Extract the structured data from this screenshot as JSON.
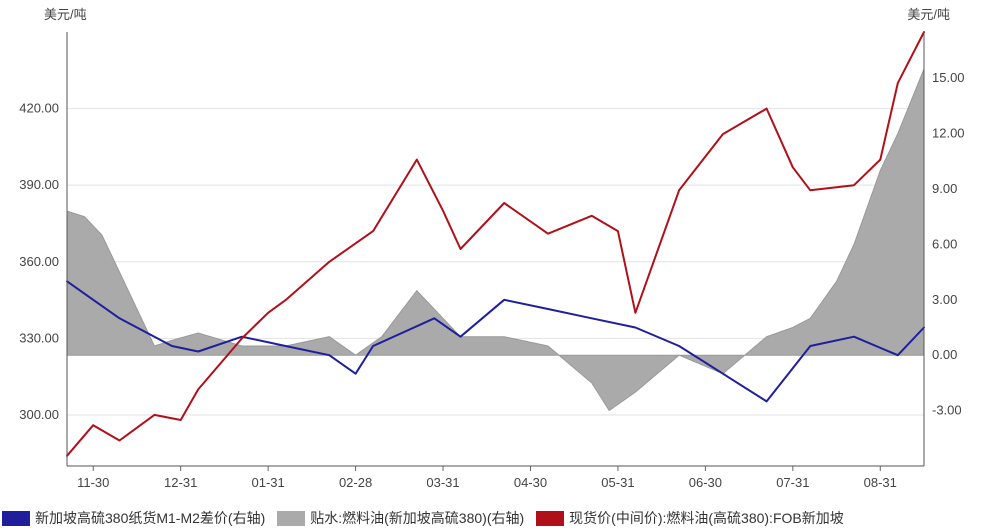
{
  "chart_data": {
    "type": "line",
    "left_unit": "美元/吨",
    "right_unit": "美元/吨",
    "ylim_left": [
      280,
      450
    ],
    "ylim_right": [
      -6,
      17.5
    ],
    "yticks_left": [
      "300.00",
      "330.00",
      "360.00",
      "390.00",
      "420.00"
    ],
    "yticks_right": [
      "-3.00",
      "0.00",
      "3.00",
      "6.00",
      "9.00",
      "12.00",
      "15.00"
    ],
    "xticks": [
      "11-30",
      "12-31",
      "01-31",
      "02-28",
      "03-31",
      "04-30",
      "05-31",
      "06-30",
      "07-31",
      "08-31"
    ],
    "legend_position": "bottom",
    "grid": "horizontal",
    "series": [
      {
        "name": "新加坡高硫380纸货M1-M2差价(右轴)",
        "kind": "line",
        "axis": "right",
        "color": "#1f1f9e",
        "x": [
          0,
          0.3,
          0.6,
          1.2,
          1.5,
          2.0,
          2.5,
          3.0,
          3.3,
          3.5,
          4.2,
          4.5,
          5.0,
          5.5,
          6.0,
          6.5,
          7.0,
          7.5,
          8.0,
          8.5,
          9.0,
          9.5,
          9.8
        ],
        "y": [
          4.0,
          3.0,
          2.0,
          0.5,
          0.2,
          1.0,
          0.5,
          0.0,
          -1.0,
          0.5,
          2.0,
          1.0,
          3.0,
          2.5,
          2.0,
          1.5,
          0.5,
          -1.0,
          -2.5,
          0.5,
          1.0,
          0.0,
          1.5
        ],
        "x2": [],
        "y2": []
      },
      {
        "name": "贴水:燃料油(新加坡高硫380)(右轴)",
        "kind": "area",
        "axis": "right",
        "color": "#aaaaaa",
        "x": [
          0,
          0.2,
          0.4,
          0.6,
          0.9,
          1.0,
          1.2,
          1.5,
          2.0,
          2.5,
          3.0,
          3.3,
          3.6,
          4.0,
          4.3,
          4.5,
          5.0,
          5.5,
          6.0,
          6.2,
          6.5,
          7.0,
          7.5,
          8.0,
          8.3,
          8.5,
          8.8,
          9.0,
          9.3,
          9.5,
          9.8
        ],
        "y": [
          7.8,
          7.5,
          6.5,
          4.5,
          1.5,
          0.5,
          0.8,
          1.2,
          0.5,
          0.5,
          1.0,
          0.0,
          1.0,
          3.5,
          2.0,
          1.0,
          1.0,
          0.5,
          -1.5,
          -3.0,
          -2.0,
          0.0,
          -1.0,
          1.0,
          1.5,
          2.0,
          4.0,
          6.0,
          10.0,
          12.0,
          15.5
        ],
        "x2": [],
        "y2": []
      },
      {
        "name": "现货价(中间价):燃料油(高硫380):FOB新加坡",
        "kind": "line",
        "axis": "left",
        "color": "#b0101a",
        "x": [
          0,
          0.3,
          0.6,
          1.0,
          1.3,
          1.5,
          2.0,
          2.3,
          2.5,
          3.0,
          3.5,
          4.0,
          4.3,
          4.5,
          5.0,
          5.5,
          6.0,
          6.3,
          6.5,
          7.0,
          7.5,
          8.0,
          8.3,
          8.5,
          9.0,
          9.3,
          9.5,
          9.8
        ],
        "y": [
          284,
          296,
          290,
          300,
          298,
          310,
          330,
          340,
          345,
          360,
          372,
          400,
          380,
          365,
          383,
          371,
          378,
          372,
          340,
          388,
          410,
          420,
          397,
          388,
          390,
          400,
          430,
          450
        ],
        "x2": [],
        "y2": []
      }
    ]
  }
}
